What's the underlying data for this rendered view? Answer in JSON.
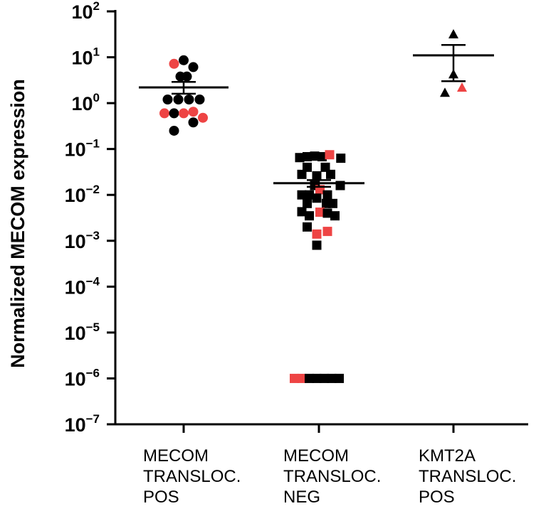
{
  "chart_data": {
    "type": "scatter",
    "ylabel": "Normalized MECOM expression",
    "y_scale": "log10",
    "ylim": [
      1e-07,
      100
    ],
    "y_ticks": [
      {
        "base": "10",
        "exp": "2",
        "value": 100
      },
      {
        "base": "10",
        "exp": "1",
        "value": 10
      },
      {
        "base": "10",
        "exp": "0",
        "value": 1
      },
      {
        "base": "10",
        "exp": "−1",
        "value": 0.1
      },
      {
        "base": "10",
        "exp": "−2",
        "value": 0.01
      },
      {
        "base": "10",
        "exp": "−3",
        "value": 0.001
      },
      {
        "base": "10",
        "exp": "−4",
        "value": 0.0001
      },
      {
        "base": "10",
        "exp": "−5",
        "value": 1e-05
      },
      {
        "base": "10",
        "exp": "−6",
        "value": 1e-06
      },
      {
        "base": "10",
        "exp": "−7",
        "value": 1e-07
      }
    ],
    "categories": [
      {
        "lines": [
          "MECOM",
          "TRANSLOC.",
          "POS"
        ]
      },
      {
        "lines": [
          "MECOM",
          "TRANSLOC.",
          "NEG"
        ]
      },
      {
        "lines": [
          "KMT2A",
          "TRANSLOC.",
          "POS"
        ]
      }
    ],
    "colors": {
      "black": "#000000",
      "red": "#ee4444"
    },
    "groups": [
      {
        "marker": "circle",
        "mean": 2.2,
        "sem_upper": 2.9,
        "sem_lower": 1.6,
        "points": [
          {
            "v": 7.2,
            "c": "red",
            "j": -0.9
          },
          {
            "v": 8.6,
            "c": "black",
            "j": 0
          },
          {
            "v": 6.1,
            "c": "black",
            "j": 0.9
          },
          {
            "v": 3.8,
            "c": "black",
            "j": -0.3
          },
          {
            "v": 3.8,
            "c": "black",
            "j": 0.3
          },
          {
            "v": 1.2,
            "c": "black",
            "j": -1.5
          },
          {
            "v": 1.2,
            "c": "black",
            "j": -0.5
          },
          {
            "v": 1.2,
            "c": "black",
            "j": 0.5
          },
          {
            "v": 1.2,
            "c": "black",
            "j": 1.5
          },
          {
            "v": 0.6,
            "c": "red",
            "j": -1.8
          },
          {
            "v": 0.6,
            "c": "black",
            "j": -0.9
          },
          {
            "v": 0.6,
            "c": "red",
            "j": 0
          },
          {
            "v": 0.65,
            "c": "red",
            "j": 0.9
          },
          {
            "v": 0.48,
            "c": "red",
            "j": 1.8
          },
          {
            "v": 0.25,
            "c": "black",
            "j": -0.9
          },
          {
            "v": 0.38,
            "c": "black",
            "j": 0.9
          }
        ]
      },
      {
        "marker": "square",
        "mean": 0.018,
        "sem_upper": 0.021,
        "sem_lower": 0.015,
        "points": [
          {
            "v": 0.065,
            "c": "black",
            "j": -1.8
          },
          {
            "v": 0.068,
            "c": "black",
            "j": -1.1
          },
          {
            "v": 0.07,
            "c": "black",
            "j": -0.4
          },
          {
            "v": 0.068,
            "c": "black",
            "j": 0.3
          },
          {
            "v": 0.075,
            "c": "red",
            "j": 1.0
          },
          {
            "v": 0.063,
            "c": "black",
            "j": 2.05
          },
          {
            "v": 0.04,
            "c": "black",
            "j": -1.1
          },
          {
            "v": 0.04,
            "c": "black",
            "j": 0.6
          },
          {
            "v": 0.028,
            "c": "black",
            "j": -1.6
          },
          {
            "v": 0.026,
            "c": "black",
            "j": -0.2
          },
          {
            "v": 0.028,
            "c": "black",
            "j": 1.1
          },
          {
            "v": 0.016,
            "c": "black",
            "j": -0.4
          },
          {
            "v": 0.016,
            "c": "black",
            "j": 2.0
          },
          {
            "v": 0.013,
            "c": "red",
            "j": 0.1
          },
          {
            "v": 0.01,
            "c": "black",
            "j": -1.6
          },
          {
            "v": 0.01,
            "c": "black",
            "j": -0.9
          },
          {
            "v": 0.01,
            "c": "black",
            "j": 0.8
          },
          {
            "v": 0.0085,
            "c": "black",
            "j": -0.2
          },
          {
            "v": 0.0065,
            "c": "black",
            "j": -1.1
          },
          {
            "v": 0.0065,
            "c": "black",
            "j": 0.7
          },
          {
            "v": 0.0065,
            "c": "black",
            "j": 1.3
          },
          {
            "v": 0.0043,
            "c": "black",
            "j": -1.6
          },
          {
            "v": 0.0042,
            "c": "red",
            "j": 0.1
          },
          {
            "v": 0.004,
            "c": "black",
            "j": 0.8
          },
          {
            "v": 0.0035,
            "c": "black",
            "j": -0.9
          },
          {
            "v": 0.0035,
            "c": "black",
            "j": 1.5
          },
          {
            "v": 0.002,
            "c": "black",
            "j": -1.1
          },
          {
            "v": 0.0016,
            "c": "red",
            "j": 0.8
          },
          {
            "v": 0.0014,
            "c": "red",
            "j": -0.2
          },
          {
            "v": 0.0008,
            "c": "black",
            "j": -0.2
          },
          {
            "v": 1e-06,
            "c": "red",
            "j": -2.3
          },
          {
            "v": 1e-06,
            "c": "red",
            "j": -1.6
          },
          {
            "v": 1e-06,
            "c": "black",
            "j": -0.9
          },
          {
            "v": 1e-06,
            "c": "black",
            "j": -0.2
          },
          {
            "v": 1e-06,
            "c": "black",
            "j": 0.5
          },
          {
            "v": 1e-06,
            "c": "black",
            "j": 1.2
          },
          {
            "v": 1e-06,
            "c": "black",
            "j": 1.9
          }
        ]
      },
      {
        "marker": "triangle",
        "mean": 11,
        "sem_upper": 18.5,
        "sem_lower": 3.0,
        "points": [
          {
            "v": 32,
            "c": "black",
            "j": 0
          },
          {
            "v": 4.3,
            "c": "black",
            "j": 0
          },
          {
            "v": 1.7,
            "c": "black",
            "j": -0.8
          },
          {
            "v": 2.2,
            "c": "red",
            "j": 0.8
          }
        ]
      }
    ],
    "grid": false,
    "legend": "none"
  }
}
